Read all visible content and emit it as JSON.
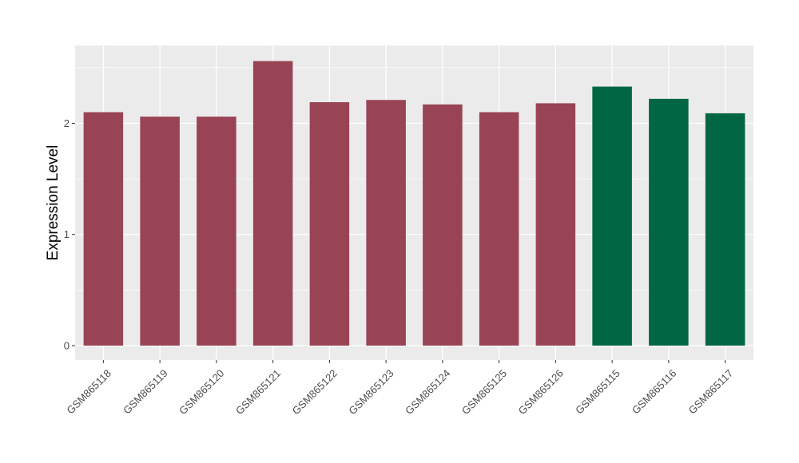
{
  "chart_data": {
    "type": "bar",
    "title": "",
    "xlabel": "",
    "ylabel": "Expression Level",
    "ylim": [
      -0.13,
      2.7
    ],
    "yticks": [
      0,
      1,
      2
    ],
    "grid": true,
    "categories": [
      "GSM865118",
      "GSM865119",
      "GSM865120",
      "GSM865121",
      "GSM865122",
      "GSM865123",
      "GSM865124",
      "GSM865125",
      "GSM865126",
      "GSM865115",
      "GSM865116",
      "GSM865117"
    ],
    "values": [
      2.1,
      2.06,
      2.06,
      2.56,
      2.19,
      2.21,
      2.17,
      2.1,
      2.18,
      2.33,
      2.22,
      2.09
    ],
    "bar_colors": [
      "#994455",
      "#994455",
      "#994455",
      "#994455",
      "#994455",
      "#994455",
      "#994455",
      "#994455",
      "#994455",
      "#006644",
      "#006644",
      "#006644"
    ],
    "panel_background": "#ebebeb",
    "grid_color": "#ffffff"
  }
}
